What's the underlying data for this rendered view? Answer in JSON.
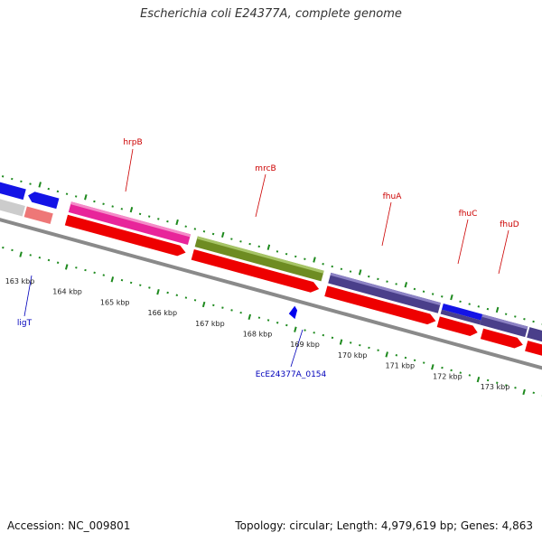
{
  "title": "Escherichia coli E24377A, complete genome",
  "footer": {
    "accession": "Accession: NC_009801",
    "summary": "Topology: circular; Length: 4,979,619 bp; Genes: 4,863"
  },
  "colors": {
    "backbone": "#8a8a8a",
    "tick": "#1e8a1e",
    "cds": "#ee0000",
    "label_top": "#cc0000",
    "label_bottom": "#0000bb"
  },
  "scale_labels": [
    "163 kbp",
    "164 kbp",
    "165 kbp",
    "166 kbp",
    "167 kbp",
    "168 kbp",
    "169 kbp",
    "170 kbp",
    "171 kbp",
    "172 kbp",
    "173 kbp"
  ],
  "genes": [
    {
      "name": "hrpB",
      "color": "#e8259a"
    },
    {
      "name": "mrcB",
      "color": "#6e8c22"
    },
    {
      "name": "fhuA",
      "color": "#4a3f8a"
    },
    {
      "name": "fhuC",
      "color": "#1414e6"
    },
    {
      "name": "fhuD",
      "color": "#4a3f8a"
    }
  ],
  "bottom_genes": [
    {
      "name": "ligT"
    },
    {
      "name": "EcE24377A_0154"
    }
  ]
}
